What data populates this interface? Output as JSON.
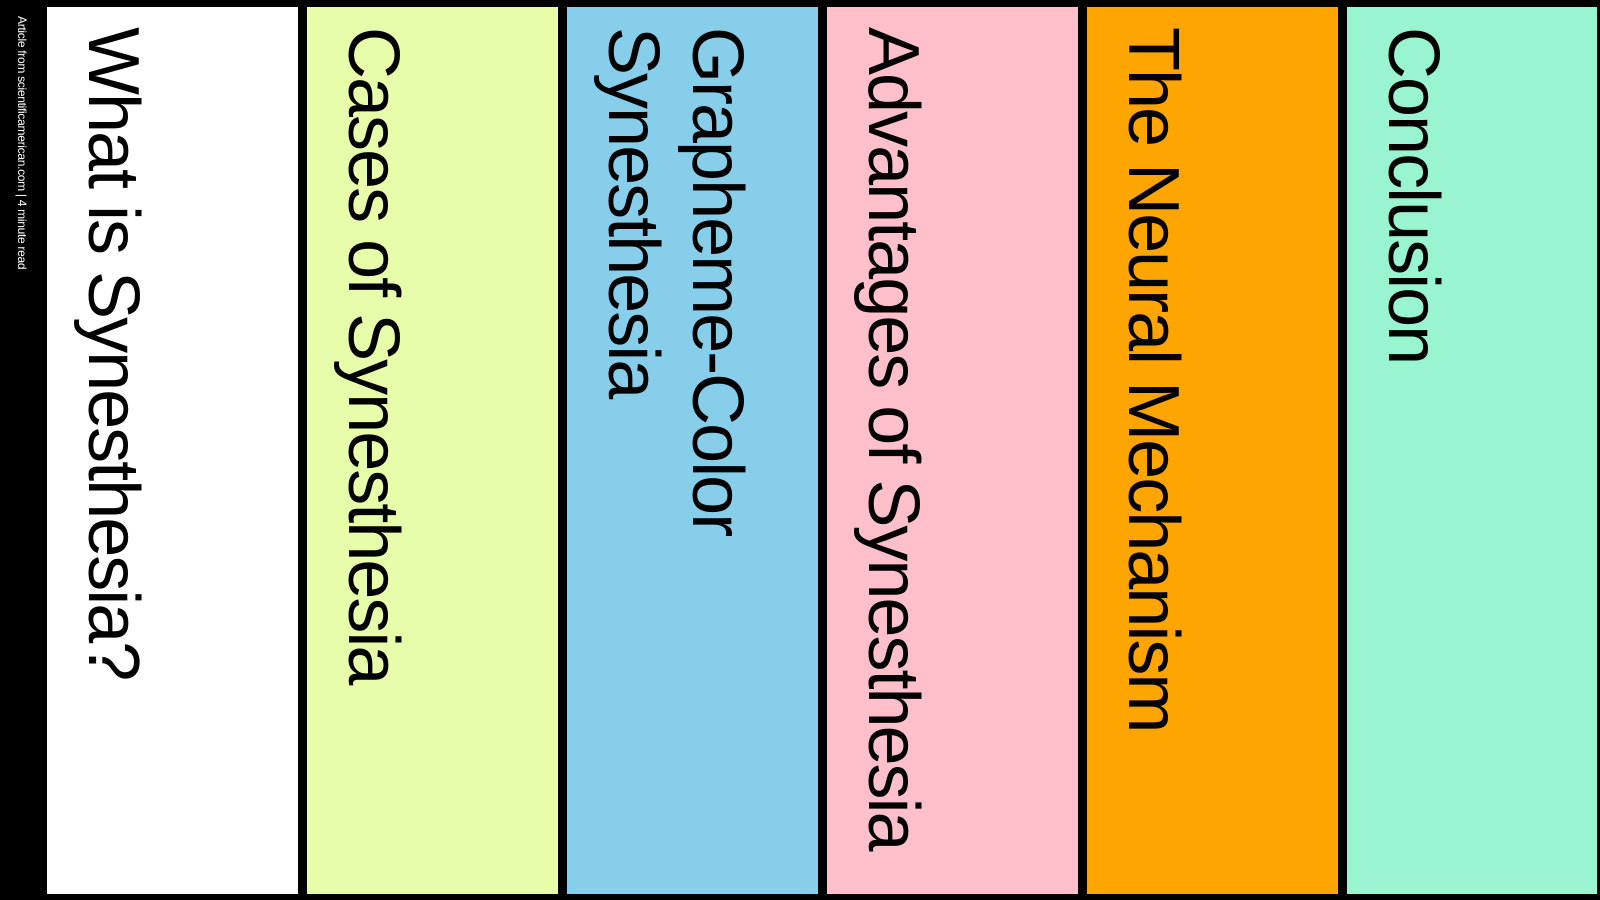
{
  "source": {
    "caption": "Article from scientificamerican.com | 4 minute read"
  },
  "panels": [
    {
      "title": "What is Synesthesia?",
      "color": "#ffffff"
    },
    {
      "title": "Cases of Synesthesia",
      "color": "#e8fdaa"
    },
    {
      "title": "Grapheme-Color Synesthesia",
      "color": "#87ceeb"
    },
    {
      "title": "Advantages of Synesthesia",
      "color": "#ffc0cb"
    },
    {
      "title": "The Neural Mechanism",
      "color": "#ffa500"
    },
    {
      "title": "Conclusion",
      "color": "#98f5d0"
    }
  ]
}
